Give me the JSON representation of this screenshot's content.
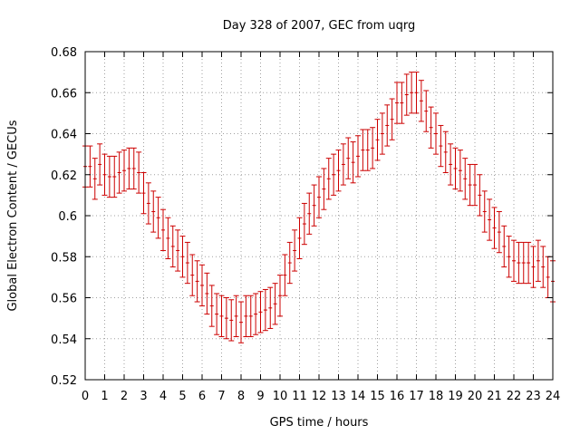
{
  "chart_data": {
    "type": "scatter",
    "title": "Day 328 of 2007, GEC from uqrg",
    "xlabel": "GPS time / hours",
    "ylabel": "Global Electron Content / GECUs",
    "xlim": [
      0,
      24
    ],
    "ylim": [
      0.52,
      0.68
    ],
    "xticks": [
      "0",
      "1",
      "2",
      "3",
      "4",
      "5",
      "6",
      "7",
      "8",
      "9",
      "10",
      "11",
      "12",
      "13",
      "14",
      "15",
      "16",
      "17",
      "18",
      "19",
      "20",
      "21",
      "22",
      "23",
      "24"
    ],
    "yticks": [
      "0.52",
      "0.54",
      "0.56",
      "0.58",
      "0.6",
      "0.62",
      "0.64",
      "0.66",
      "0.68"
    ],
    "grid": true,
    "legend": "none",
    "error_half_width": 0.01,
    "color": "#cc0000",
    "series": [
      {
        "x": [
          0,
          0.25,
          0.5,
          0.75,
          1,
          1.25,
          1.5,
          1.75,
          2,
          2.25,
          2.5,
          2.75,
          3,
          3.25,
          3.5,
          3.75,
          4,
          4.25,
          4.5,
          4.75,
          5,
          5.25,
          5.5,
          5.75,
          6,
          6.25,
          6.5,
          6.75,
          7,
          7.25,
          7.5,
          7.75,
          8,
          8.25,
          8.5,
          8.75,
          9,
          9.25,
          9.5,
          9.75,
          10,
          10.25,
          10.5,
          10.75,
          11,
          11.25,
          11.5,
          11.75,
          12,
          12.25,
          12.5,
          12.75,
          13,
          13.25,
          13.5,
          13.75,
          14,
          14.25,
          14.5,
          14.75,
          15,
          15.25,
          15.5,
          15.75,
          16,
          16.25,
          16.5,
          16.75,
          17,
          17.25,
          17.5,
          17.75,
          18,
          18.25,
          18.5,
          18.75,
          19,
          19.25,
          19.5,
          19.75,
          20,
          20.25,
          20.5,
          20.75,
          21,
          21.25,
          21.5,
          21.75,
          22,
          22.25,
          22.5,
          22.75,
          23,
          23.25,
          23.5,
          23.75,
          24
        ],
        "y": [
          0.624,
          0.624,
          0.618,
          0.625,
          0.62,
          0.619,
          0.619,
          0.621,
          0.622,
          0.623,
          0.623,
          0.621,
          0.611,
          0.606,
          0.602,
          0.599,
          0.593,
          0.589,
          0.585,
          0.583,
          0.58,
          0.577,
          0.571,
          0.568,
          0.566,
          0.562,
          0.556,
          0.552,
          0.551,
          0.55,
          0.549,
          0.551,
          0.548,
          0.551,
          0.551,
          0.552,
          0.553,
          0.554,
          0.555,
          0.557,
          0.561,
          0.571,
          0.577,
          0.583,
          0.589,
          0.596,
          0.601,
          0.605,
          0.609,
          0.613,
          0.618,
          0.62,
          0.622,
          0.625,
          0.628,
          0.626,
          0.629,
          0.632,
          0.632,
          0.633,
          0.637,
          0.64,
          0.644,
          0.647,
          0.655,
          0.655,
          0.659,
          0.66,
          0.66,
          0.656,
          0.651,
          0.643,
          0.64,
          0.634,
          0.631,
          0.625,
          0.623,
          0.622,
          0.618,
          0.615,
          0.615,
          0.61,
          0.602,
          0.598,
          0.594,
          0.592,
          0.585,
          0.58,
          0.578,
          0.577,
          0.577,
          0.577,
          0.575,
          0.578,
          0.575,
          0.57,
          0.568
        ]
      }
    ]
  }
}
